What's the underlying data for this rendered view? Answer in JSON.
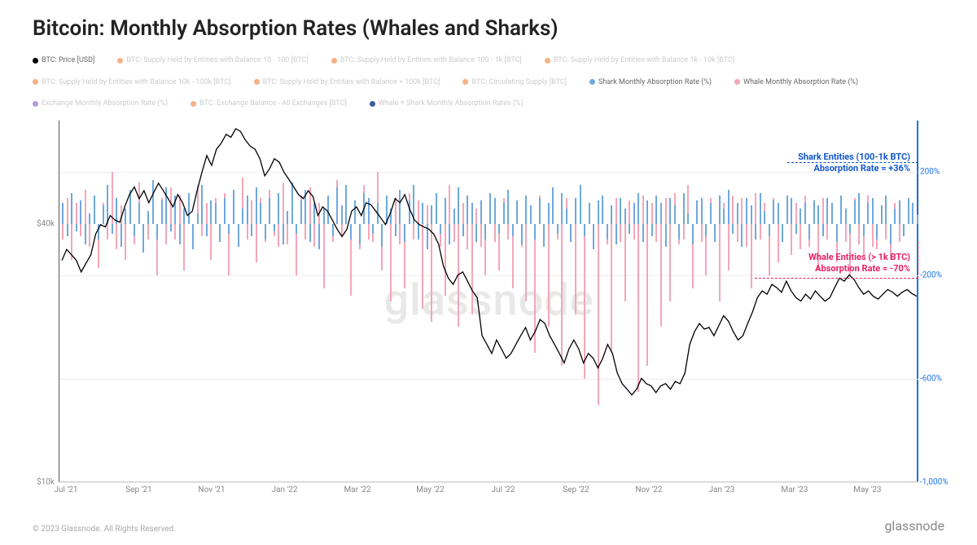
{
  "title": "Bitcoin: Monthly Absorption Rates (Whales and Sharks)",
  "watermark": "glassnode",
  "footer_copyright": "© 2023 Glassnode. All Rights Reserved.",
  "footer_brand": "glassnode",
  "colors": {
    "price_line": "#000000",
    "shark_bar": "#6fa8dc",
    "whale_bar": "#f4a6b8",
    "right_axis": "#1a73e8",
    "shark_text": "#1155cc",
    "whale_text": "#e91e63",
    "grid": "#eeeeee",
    "legend_inactive": "#f5b183",
    "legend_purple": "#b19cd9",
    "legend_darkblue": "#3c5aa6"
  },
  "legend": [
    {
      "color": "#000000",
      "label": "BTC: Price [USD]",
      "active": true
    },
    {
      "color": "#f5b183",
      "label": "BTC: Supply Held by Entities with Balance 10 - 100 [BTC]",
      "active": false
    },
    {
      "color": "#f5b183",
      "label": "BTC: Supply Held by Entities with Balance 100 - 1k [BTC]",
      "active": false
    },
    {
      "color": "#f5b183",
      "label": "BTC: Supply Held by Entities with Balance 1k - 10k [BTC]",
      "active": false
    },
    {
      "color": "#f5b183",
      "label": "BTC: Supply Held by Entities with Balance 10k - 100k [BTC]",
      "active": false
    },
    {
      "color": "#f5b183",
      "label": "BTC: Supply Held by Entities with Balance > 100k [BTC]",
      "active": false
    },
    {
      "color": "#f5b183",
      "label": "BTC: Circulating Supply [BTC]",
      "active": false
    },
    {
      "color": "#6fa8dc",
      "label": "Shark Monthly Absorption Rate (%)",
      "active": true
    },
    {
      "color": "#f4a6b8",
      "label": "Whale Monthly Absorption Rate (%)",
      "active": true
    },
    {
      "color": "#b19cd9",
      "label": "Exchange Monthly Absorption Rate (%)",
      "active": false
    },
    {
      "color": "#f5b183",
      "label": "BTC: Exchange Balance - All Exchanges [BTC]",
      "active": false
    },
    {
      "color": "#3c5aa6",
      "label": "Whale + Shark Monthly Absorption Rates (%)",
      "active": false
    }
  ],
  "y_left": {
    "scale": "log",
    "min": 10000,
    "max": 70000,
    "ticks": [
      {
        "value": 10000,
        "label": "$10k"
      },
      {
        "value": 40000,
        "label": "$40k"
      }
    ]
  },
  "y_right": {
    "min": -1000,
    "max": 400,
    "zero": 0,
    "ticks": [
      {
        "value": 200,
        "label": "200%"
      },
      {
        "value": -200,
        "label": "-200%"
      },
      {
        "value": -600,
        "label": "-600%"
      },
      {
        "value": -1000,
        "label": "-1,000%"
      }
    ]
  },
  "x": {
    "labels": [
      "Jul '21",
      "Sep '21",
      "Nov '21",
      "Jan '22",
      "Mar '22",
      "May '22",
      "Jul '22",
      "Sep '22",
      "Nov '22",
      "Jan '23",
      "Mar '23",
      "May '23"
    ]
  },
  "annotations": {
    "shark": {
      "line1": "Shark Entities (100-1k BTC)",
      "line2": "Absorption Rate = +36%",
      "value": 36
    },
    "whale": {
      "line1": "Whale Entities (> 1k BTC)",
      "line2": "Absorption Rate = -70%",
      "value": -70
    }
  },
  "series": {
    "price": [
      33000,
      35000,
      34000,
      33000,
      31000,
      32500,
      34000,
      38000,
      40000,
      39500,
      42000,
      41000,
      40500,
      44000,
      47000,
      49000,
      46000,
      48000,
      45000,
      47500,
      50000,
      48000,
      46000,
      44000,
      47000,
      45000,
      42000,
      43000,
      48000,
      53000,
      58000,
      55000,
      60000,
      62000,
      65000,
      64000,
      67000,
      66000,
      63000,
      61000,
      60000,
      57000,
      52000,
      54000,
      57000,
      56000,
      53000,
      51000,
      49000,
      47000,
      46000,
      48000,
      46500,
      42000,
      44000,
      43000,
      41000,
      39000,
      37500,
      39000,
      43000,
      44000,
      42000,
      45000,
      44500,
      43000,
      41500,
      40000,
      42500,
      46000,
      45000,
      47000,
      43500,
      41000,
      40000,
      39500,
      39000,
      38000,
      36000,
      32000,
      30000,
      29000,
      30500,
      31000,
      29500,
      28000,
      27000,
      22000,
      21000,
      20000,
      21500,
      20500,
      19500,
      20000,
      21000,
      22000,
      23000,
      21500,
      22500,
      24000,
      23500,
      22000,
      21000,
      20000,
      19000,
      20500,
      21500,
      20500,
      19000,
      20000,
      19500,
      18500,
      19500,
      21000,
      20000,
      18000,
      17000,
      16500,
      16000,
      16500,
      17500,
      17000,
      16800,
      16200,
      16800,
      17000,
      16500,
      17200,
      17000,
      18000,
      21000,
      22500,
      23500,
      22800,
      23000,
      22000,
      23200,
      24500,
      23800,
      22500,
      21500,
      22000,
      23500,
      25000,
      27000,
      28000,
      27500,
      29000,
      28500,
      27800,
      29500,
      28000,
      27000,
      26500,
      27500,
      26800,
      28000,
      27200,
      26500,
      27000,
      28500,
      30000,
      29500,
      30500,
      29800,
      28500,
      27500,
      28000,
      27200,
      26800,
      27500,
      28200,
      27800,
      27200,
      27800,
      28200,
      27600,
      27200
    ],
    "shark": [
      80,
      -50,
      120,
      -30,
      90,
      -80,
      40,
      110,
      -60,
      70,
      150,
      -40,
      100,
      -90,
      60,
      130,
      -50,
      80,
      -110,
      50,
      170,
      -60,
      90,
      140,
      -30,
      110,
      -80,
      60,
      120,
      -100,
      40,
      150,
      -50,
      90,
      80,
      -70,
      100,
      -40,
      130,
      -90,
      60,
      110,
      -50,
      140,
      80,
      -60,
      100,
      -30,
      120,
      -80,
      50,
      160,
      -40,
      90,
      130,
      -70,
      80,
      -100,
      60,
      110,
      -50,
      140,
      70,
      150,
      -60,
      90,
      -80,
      120,
      100,
      -40,
      80,
      -90,
      110,
      60,
      -50,
      130,
      -70,
      90,
      150,
      -60,
      80,
      -100,
      70,
      120,
      -40,
      100,
      -80,
      60,
      140,
      -50,
      110,
      80,
      -70,
      90,
      -60,
      120,
      100,
      -40,
      80,
      130,
      -50,
      90,
      -80,
      110,
      70,
      -60,
      100,
      -90,
      80,
      140,
      -40,
      120,
      60,
      -70,
      100,
      150,
      -50,
      80,
      -100,
      90,
      110,
      -60,
      70,
      -80,
      100,
      60,
      -40,
      80,
      120,
      -70,
      90,
      -50,
      110,
      80,
      -90,
      100,
      70,
      -60,
      120,
      40,
      -80,
      90,
      100,
      -50,
      80,
      -70,
      110,
      60,
      130,
      -40,
      80,
      -90,
      100,
      70,
      -60,
      120,
      50,
      -50,
      90,
      80,
      -70,
      110,
      100,
      -40,
      60,
      80,
      -60,
      90,
      70,
      -50,
      100,
      80,
      -70,
      110,
      60,
      -40,
      90,
      120,
      -50,
      80,
      100,
      -60,
      70,
      110,
      -80,
      60,
      90,
      -50,
      100,
      80,
      36
    ],
    "whale": [
      -60,
      100,
      -140,
      80,
      -50,
      130,
      -90,
      60,
      -170,
      80,
      -60,
      200,
      -100,
      70,
      -140,
      50,
      -80,
      160,
      -50,
      -60,
      90,
      -200,
      100,
      -80,
      140,
      -60,
      110,
      -180,
      70,
      -90,
      150,
      -50,
      80,
      -140,
      100,
      -60,
      120,
      -200,
      70,
      -80,
      180,
      -60,
      90,
      -150,
      100,
      -70,
      130,
      -50,
      -90,
      160,
      -80,
      70,
      -200,
      110,
      -60,
      140,
      -90,
      80,
      -250,
      100,
      -70,
      170,
      -50,
      90,
      -280,
      80,
      -100,
      150,
      -60,
      -70,
      200,
      -180,
      90,
      -300,
      100,
      -80,
      -250,
      120,
      -60,
      90,
      -330,
      70,
      -380,
      100,
      -90,
      -280,
      150,
      -70,
      -400,
      80,
      -100,
      -350,
      60,
      -90,
      -200,
      120,
      -70,
      -180,
      100,
      -60,
      -250,
      80,
      -90,
      -300,
      70,
      -500,
      110,
      -80,
      -400,
      90,
      -60,
      -550,
      100,
      -70,
      -350,
      120,
      -600,
      80,
      -90,
      -700,
      60,
      -80,
      -500,
      100,
      -70,
      -300,
      90,
      -60,
      -650,
      110,
      -550,
      80,
      -70,
      -400,
      100,
      -300,
      120,
      -80,
      -60,
      150,
      -250,
      90,
      -70,
      -200,
      100,
      -60,
      -300,
      80,
      -180,
      110,
      -70,
      100,
      -90,
      -250,
      120,
      -60,
      80,
      -200,
      100,
      -150,
      -70,
      90,
      -120,
      80,
      -100,
      110,
      -90,
      70,
      -180,
      100,
      -60,
      80,
      -150,
      90,
      -70,
      -200,
      100,
      -80,
      -120,
      110,
      -90,
      -100,
      70,
      -60,
      -140,
      80,
      -70
    ]
  }
}
